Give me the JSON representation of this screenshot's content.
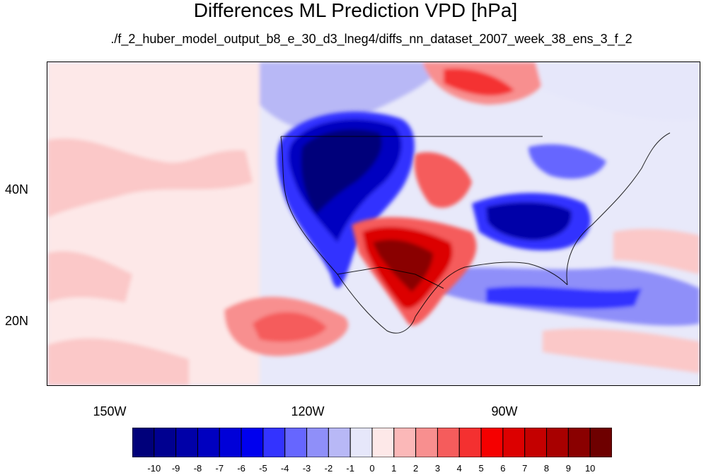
{
  "title": "Differences ML Prediction VPD [hPa]",
  "subtitle": "./f_2_huber_model_output_b8_e_30_d3_lneg4/diffs_nn_dataset_2007_week_38_ens_3_f_2",
  "axes": {
    "lat_labels": [
      "40N",
      "20N"
    ],
    "lon_labels": [
      "150W",
      "120W",
      "90W"
    ]
  },
  "colorbar": {
    "labels": [
      "-10",
      "-9",
      "-8",
      "-7",
      "-6",
      "-5",
      "-4",
      "-3",
      "-2",
      "-1",
      "0",
      "1",
      "2",
      "3",
      "4",
      "5",
      "6",
      "7",
      "8",
      "9",
      "10"
    ],
    "colors": [
      "#00007a",
      "#000090",
      "#0000a8",
      "#0000c0",
      "#0000d8",
      "#0000ee",
      "#3333ff",
      "#6666ff",
      "#8f8ff9",
      "#b8b8f6",
      "#e6e7fa",
      "#fde8e8",
      "#fbb8b8",
      "#f88f8f",
      "#f55c5c",
      "#f43030",
      "#f50000",
      "#dc0000",
      "#c40000",
      "#a80000",
      "#8a0000",
      "#6e0000"
    ]
  }
}
